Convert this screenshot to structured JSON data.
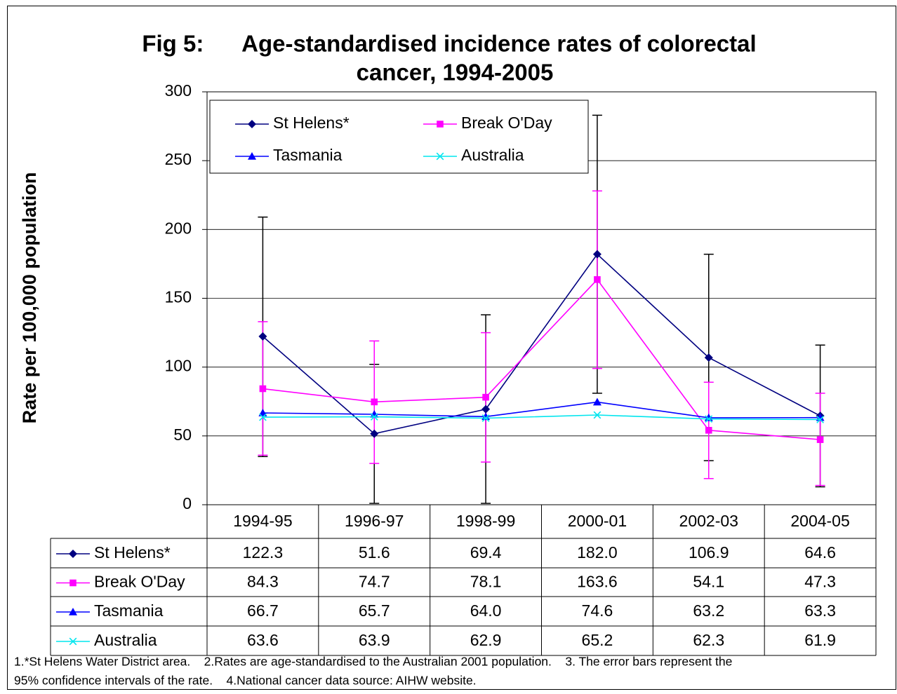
{
  "chart_data": {
    "type": "line",
    "title": [
      "Fig 5:      Age-standardised incidence rates of colorectal",
      "cancer, 1994-2005"
    ],
    "y_label": "Rate per 100,000 population",
    "categories": [
      "1994-95",
      "1996-97",
      "1998-99",
      "2000-01",
      "2002-03",
      "2004-05"
    ],
    "ylim": [
      0,
      300
    ],
    "yticks": [
      0,
      50,
      100,
      150,
      200,
      250,
      300
    ],
    "grid": true,
    "legend": "top-left",
    "series": [
      {
        "name": "St Helens*",
        "color": "#000080",
        "marker": "diamond",
        "error_color": "#000000",
        "values": [
          122.3,
          51.6,
          69.4,
          182,
          106.9,
          64.6
        ],
        "value_labels": [
          "122.3",
          "51.6",
          "69.4",
          "182.0",
          "106.9",
          "64.6"
        ],
        "ci_lower": [
          35,
          1,
          1,
          81,
          32,
          13
        ],
        "ci_upper": [
          209,
          102,
          138,
          283,
          182,
          116
        ]
      },
      {
        "name": "Break O'Day",
        "color": "#ff00ff",
        "marker": "square",
        "error_color": "#ff00ff",
        "values": [
          84.3,
          74.7,
          78.1,
          163.6,
          54.1,
          47.3
        ],
        "value_labels": [
          "84.3",
          "74.7",
          "78.1",
          "163.6",
          "54.1",
          "47.3"
        ],
        "ci_lower": [
          36,
          30,
          31,
          99,
          19,
          14
        ],
        "ci_upper": [
          133,
          119,
          125,
          228,
          89,
          81
        ]
      },
      {
        "name": "Tasmania",
        "color": "#0000ff",
        "marker": "triangle",
        "values": [
          66.7,
          65.7,
          64,
          74.6,
          63.2,
          63.3
        ],
        "value_labels": [
          "66.7",
          "65.7",
          "64.0",
          "74.6",
          "63.2",
          "63.3"
        ]
      },
      {
        "name": "Australia",
        "color": "#00e5ee",
        "marker": "x",
        "values": [
          63.6,
          63.9,
          62.9,
          65.2,
          62.3,
          61.9
        ],
        "value_labels": [
          "63.6",
          "63.9",
          "62.9",
          "65.2",
          "62.3",
          "61.9"
        ]
      }
    ],
    "footnote": [
      "1.*St Helens Water District area.    2.Rates are age-standardised to the Australian 2001 population.    3. The error bars represent the",
      "95% confidence intervals of the rate.    4.National cancer data source: AIHW website."
    ]
  }
}
